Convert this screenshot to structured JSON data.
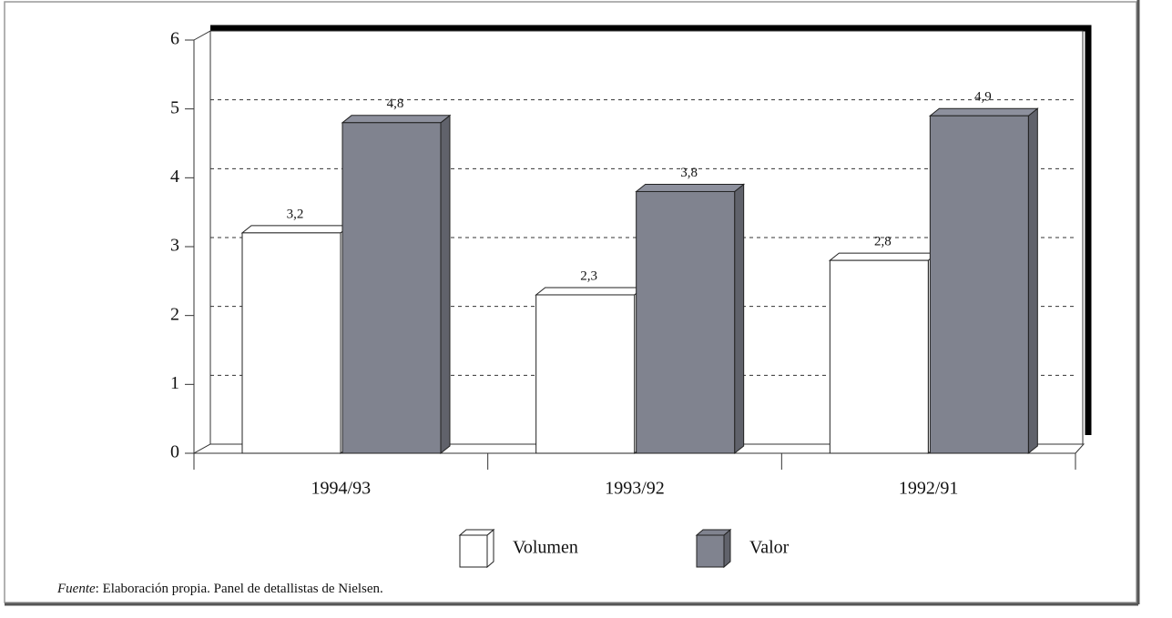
{
  "chart_data": {
    "type": "bar3d",
    "categories": [
      "1994/93",
      "1993/92",
      "1992/91"
    ],
    "series": [
      {
        "name": "Volumen",
        "color": "#ffffff",
        "values": [
          3.2,
          2.3,
          2.8
        ],
        "value_labels": [
          "3,2",
          "2,3",
          "2,8"
        ]
      },
      {
        "name": "Valor",
        "color": "#80838f",
        "values": [
          4.8,
          3.8,
          4.9
        ],
        "value_labels": [
          "4,8",
          "3,8",
          "4,9"
        ]
      }
    ],
    "ylim": [
      0,
      6
    ],
    "yticks": [
      0,
      1,
      2,
      3,
      4,
      5,
      6
    ],
    "grid": true,
    "source": {
      "label": "Fuente",
      "text": ": Elaboración propia. Panel de detallistas de Nielsen."
    }
  }
}
